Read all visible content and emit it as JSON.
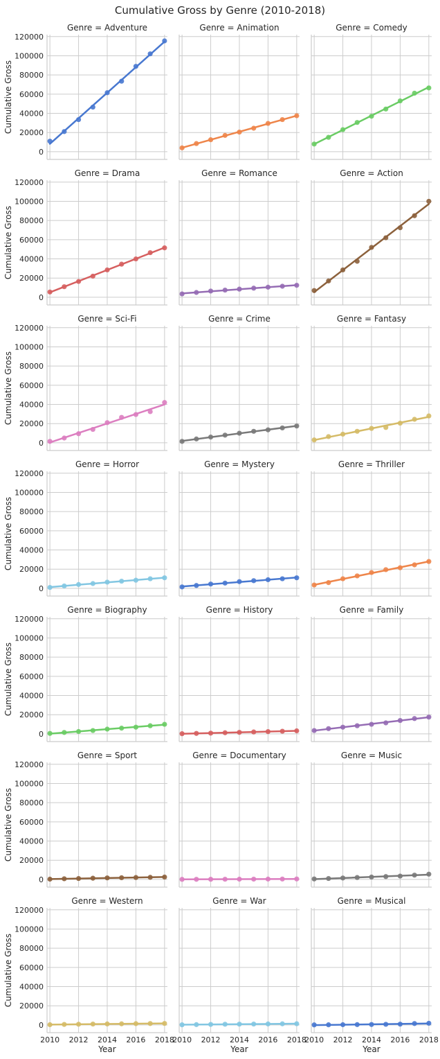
{
  "chart_data": {
    "type": "line",
    "title": "Cumulative Gross by Genre (2010-2018)",
    "xlabel": "Year",
    "ylabel": "Cumulative Gross",
    "xlim": [
      2009.8,
      2018.2
    ],
    "ylim": [
      -8000,
      122000
    ],
    "xticks": [
      2010,
      2012,
      2014,
      2016,
      2018
    ],
    "yticks": [
      0,
      20000,
      40000,
      60000,
      80000,
      100000,
      120000
    ],
    "grid": true,
    "facet_label": "Genre =",
    "x": [
      2010,
      2011,
      2012,
      2013,
      2014,
      2015,
      2016,
      2017,
      2018
    ],
    "series": [
      {
        "name": "Adventure",
        "color": "#4878d0",
        "values": [
          11000,
          21000,
          33500,
          46500,
          61500,
          73500,
          89000,
          102000,
          115500
        ]
      },
      {
        "name": "Animation",
        "color": "#ee854a",
        "values": [
          4000,
          8500,
          12500,
          17000,
          20500,
          24500,
          29500,
          33500,
          37500
        ]
      },
      {
        "name": "Comedy",
        "color": "#6acc64",
        "values": [
          8000,
          15000,
          23000,
          30500,
          37000,
          44500,
          53000,
          61000,
          66500
        ]
      },
      {
        "name": "Drama",
        "color": "#d65f5f",
        "values": [
          5500,
          11000,
          16500,
          22000,
          28500,
          34500,
          40000,
          46500,
          51500
        ]
      },
      {
        "name": "Romance",
        "color": "#956cb4",
        "values": [
          3500,
          5000,
          6500,
          7500,
          8500,
          9500,
          10500,
          11500,
          12500
        ]
      },
      {
        "name": "Action",
        "color": "#8c613c",
        "values": [
          7000,
          17000,
          28500,
          37500,
          52000,
          62000,
          72500,
          85000,
          100000
        ]
      },
      {
        "name": "Sci-Fi",
        "color": "#dc7ec0",
        "values": [
          1500,
          5000,
          9500,
          14000,
          21000,
          26500,
          29500,
          32500,
          42000
        ]
      },
      {
        "name": "Crime",
        "color": "#797979",
        "values": [
          1500,
          4000,
          6000,
          8000,
          10000,
          12000,
          13500,
          15500,
          17500
        ]
      },
      {
        "name": "Fantasy",
        "color": "#d5bb67",
        "values": [
          3000,
          6500,
          9000,
          12000,
          15000,
          16000,
          20500,
          24500,
          28000
        ]
      },
      {
        "name": "Horror",
        "color": "#82c6e2",
        "values": [
          1000,
          2500,
          4000,
          5000,
          6500,
          7500,
          8500,
          10000,
          11000
        ]
      },
      {
        "name": "Mystery",
        "color": "#4878d0",
        "values": [
          1500,
          3000,
          4500,
          5500,
          7000,
          8000,
          9000,
          10000,
          11000
        ]
      },
      {
        "name": "Thriller",
        "color": "#ee854a",
        "values": [
          3500,
          6000,
          10000,
          13000,
          16500,
          19500,
          21500,
          24500,
          28000
        ]
      },
      {
        "name": "Biography",
        "color": "#6acc64",
        "values": [
          500,
          1500,
          2500,
          3500,
          5000,
          6000,
          7000,
          8500,
          10000
        ]
      },
      {
        "name": "History",
        "color": "#d65f5f",
        "values": [
          200,
          500,
          800,
          1200,
          1600,
          2000,
          2400,
          2800,
          3200
        ]
      },
      {
        "name": "Family",
        "color": "#956cb4",
        "values": [
          3500,
          5500,
          7000,
          8500,
          10000,
          11500,
          14000,
          16000,
          17500
        ]
      },
      {
        "name": "Sport",
        "color": "#8c613c",
        "values": [
          300,
          700,
          1000,
          1300,
          1600,
          1800,
          2000,
          2200,
          2500
        ]
      },
      {
        "name": "Documentary",
        "color": "#dc7ec0",
        "values": [
          100,
          150,
          200,
          250,
          300,
          350,
          400,
          450,
          500
        ]
      },
      {
        "name": "Music",
        "color": "#797979",
        "values": [
          500,
          1000,
          1500,
          2000,
          2500,
          3000,
          3500,
          4500,
          5500
        ]
      },
      {
        "name": "Western",
        "color": "#d5bb67",
        "values": [
          300,
          600,
          800,
          1000,
          1100,
          1200,
          1400,
          1500,
          1600
        ]
      },
      {
        "name": "War",
        "color": "#82c6e2",
        "values": [
          200,
          400,
          600,
          800,
          900,
          1000,
          1100,
          1200,
          1300
        ]
      },
      {
        "name": "Musical",
        "color": "#4878d0",
        "values": [
          100,
          200,
          300,
          400,
          500,
          700,
          900,
          1500,
          1800
        ]
      }
    ]
  }
}
